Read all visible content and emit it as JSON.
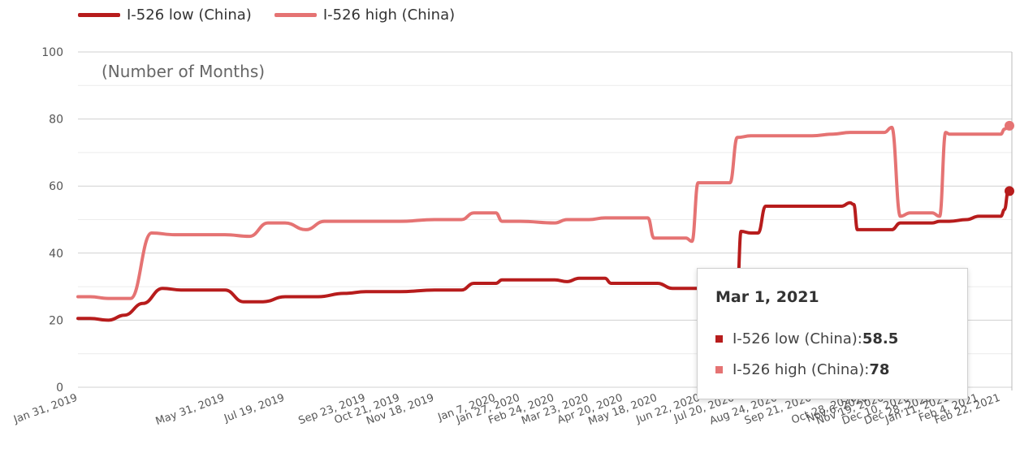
{
  "chart_data": {
    "type": "line",
    "title": "",
    "y_note": "(Number of Months)",
    "xlabel": "",
    "ylabel": "",
    "ylim": [
      0,
      100
    ],
    "y_ticks": [
      0,
      20,
      40,
      60,
      80,
      100
    ],
    "grid": true,
    "legend_position": "top-left",
    "categories": [
      "Jan 31, 2019",
      "May 31, 2019",
      "Jul 19, 2019",
      "Sep 23, 2019",
      "Oct 21, 2019",
      "Nov 18, 2019",
      "Jan 7, 2020",
      "Jan 27, 2020",
      "Feb 24, 2020",
      "Mar 23, 2020",
      "Apr 20, 2020",
      "May 18, 2020",
      "Jun 22, 2020",
      "Jul 20, 2020",
      "Aug 24, 2020",
      "Sep 21, 2020",
      "Oct 28, 2020",
      "Nov 6, 2020",
      "Nov 19, 2020",
      "Dec 10, 2020",
      "Dec 28, 2020",
      "Jan 11, 2021",
      "Feb 4, 2021",
      "Feb 22, 2021"
    ],
    "series": [
      {
        "name": "I-526 low (China)",
        "color": "#b71c1c",
        "points": [
          [
            "Jan 31, 2019",
            20.5
          ],
          [
            "Feb 10, 2019",
            20.5
          ],
          [
            "Feb 25, 2019",
            20
          ],
          [
            "Mar 10, 2019",
            21.5
          ],
          [
            "Mar 25, 2019",
            25
          ],
          [
            "Apr 10, 2019",
            29.5
          ],
          [
            "Apr 25, 2019",
            29
          ],
          [
            "May 20, 2019",
            29
          ],
          [
            "May 31, 2019",
            29
          ],
          [
            "Jun 15, 2019",
            25.5
          ],
          [
            "Jul 1, 2019",
            25.5
          ],
          [
            "Jul 19, 2019",
            27
          ],
          [
            "Aug 15, 2019",
            27
          ],
          [
            "Sep 5, 2019",
            28
          ],
          [
            "Sep 23, 2019",
            28.5
          ],
          [
            "Oct 21, 2019",
            28.5
          ],
          [
            "Nov 18, 2019",
            29
          ],
          [
            "Dec 10, 2019",
            29
          ],
          [
            "Dec 20, 2019",
            31
          ],
          [
            "Jan 7, 2020",
            31
          ],
          [
            "Jan 12, 2020",
            32
          ],
          [
            "Jan 27, 2020",
            32
          ],
          [
            "Feb 24, 2020",
            32
          ],
          [
            "Mar 5, 2020",
            31.5
          ],
          [
            "Mar 15, 2020",
            32.5
          ],
          [
            "Apr 5, 2020",
            32.5
          ],
          [
            "Apr 10, 2020",
            31
          ],
          [
            "Apr 20, 2020",
            31
          ],
          [
            "May 18, 2020",
            31
          ],
          [
            "May 30, 2020",
            29.5
          ],
          [
            "Jun 22, 2020",
            29.5
          ],
          [
            "Jul 10, 2020",
            29.5
          ],
          [
            "Jul 16, 2020",
            29
          ],
          [
            "Jul 22, 2020",
            29
          ],
          [
            "Jul 25, 2020",
            46.5
          ],
          [
            "Aug 2, 2020",
            46
          ],
          [
            "Aug 8, 2020",
            46
          ],
          [
            "Aug 14, 2020",
            54
          ],
          [
            "Aug 24, 2020",
            54
          ],
          [
            "Sep 21, 2020",
            54
          ],
          [
            "Sep 28, 2020",
            54
          ],
          [
            "Oct 15, 2020",
            54
          ],
          [
            "Oct 22, 2020",
            55
          ],
          [
            "Oct 25, 2020",
            54.5
          ],
          [
            "Oct 28, 2020",
            47
          ],
          [
            "Nov 6, 2020",
            47
          ],
          [
            "Nov 19, 2020",
            47
          ],
          [
            "Nov 25, 2020",
            47
          ],
          [
            "Dec 2, 2020",
            49
          ],
          [
            "Dec 10, 2020",
            49
          ],
          [
            "Dec 28, 2020",
            49
          ],
          [
            "Jan 3, 2021",
            49.5
          ],
          [
            "Jan 11, 2021",
            49.5
          ],
          [
            "Jan 25, 2021",
            50
          ],
          [
            "Feb 4, 2021",
            51
          ],
          [
            "Feb 22, 2021",
            51
          ],
          [
            "Feb 25, 2021",
            53
          ],
          [
            "Feb 28, 2021",
            58.5
          ],
          [
            "Mar 1, 2021",
            58.5
          ]
        ]
      },
      {
        "name": "I-526 high (China)",
        "color": "#e57373",
        "points": [
          [
            "Jan 31, 2019",
            27
          ],
          [
            "Feb 10, 2019",
            27
          ],
          [
            "Feb 25, 2019",
            26.5
          ],
          [
            "Mar 15, 2019",
            26.5
          ],
          [
            "Apr 1, 2019",
            46
          ],
          [
            "Apr 20, 2019",
            45.5
          ],
          [
            "May 31, 2019",
            45.5
          ],
          [
            "Jun 20, 2019",
            45
          ],
          [
            "Jul 5, 2019",
            49
          ],
          [
            "Jul 19, 2019",
            49
          ],
          [
            "Aug 5, 2019",
            47
          ],
          [
            "Aug 20, 2019",
            49.5
          ],
          [
            "Sep 23, 2019",
            49.5
          ],
          [
            "Oct 21, 2019",
            49.5
          ],
          [
            "Nov 18, 2019",
            50
          ],
          [
            "Dec 10, 2019",
            50
          ],
          [
            "Dec 20, 2019",
            52
          ],
          [
            "Jan 7, 2020",
            52
          ],
          [
            "Jan 12, 2020",
            49.5
          ],
          [
            "Jan 27, 2020",
            49.5
          ],
          [
            "Feb 24, 2020",
            49
          ],
          [
            "Mar 5, 2020",
            50
          ],
          [
            "Mar 23, 2020",
            50
          ],
          [
            "Apr 5, 2020",
            50.5
          ],
          [
            "Apr 20, 2020",
            50.5
          ],
          [
            "May 10, 2020",
            50.5
          ],
          [
            "May 15, 2020",
            44.5
          ],
          [
            "May 18, 2020",
            44.5
          ],
          [
            "Jun 10, 2020",
            44.5
          ],
          [
            "Jun 15, 2020",
            43.5
          ],
          [
            "Jun 20, 2020",
            61
          ],
          [
            "Jun 22, 2020",
            61
          ],
          [
            "Jul 10, 2020",
            61
          ],
          [
            "Jul 16, 2020",
            61
          ],
          [
            "Jul 22, 2020",
            74.5
          ],
          [
            "Aug 2, 2020",
            75
          ],
          [
            "Aug 8, 2020",
            75
          ],
          [
            "Aug 24, 2020",
            75
          ],
          [
            "Sep 21, 2020",
            75
          ],
          [
            "Oct 8, 2020",
            75.5
          ],
          [
            "Oct 22, 2020",
            76
          ],
          [
            "Oct 28, 2020",
            76
          ],
          [
            "Nov 6, 2020",
            76
          ],
          [
            "Nov 19, 2020",
            76
          ],
          [
            "Nov 25, 2020",
            77.5
          ],
          [
            "Dec 2, 2020",
            51
          ],
          [
            "Dec 10, 2020",
            52
          ],
          [
            "Dec 28, 2020",
            52
          ],
          [
            "Jan 3, 2021",
            51
          ],
          [
            "Jan 8, 2021",
            76
          ],
          [
            "Jan 11, 2021",
            75.5
          ],
          [
            "Jan 25, 2021",
            75.5
          ],
          [
            "Feb 4, 2021",
            75.5
          ],
          [
            "Feb 22, 2021",
            75.5
          ],
          [
            "Feb 25, 2021",
            77
          ],
          [
            "Mar 1, 2021",
            78
          ]
        ]
      }
    ]
  },
  "legend": [
    {
      "label": "I-526 low (China)",
      "color": "#b71c1c"
    },
    {
      "label": "I-526 high (China)",
      "color": "#e57373"
    }
  ],
  "tooltip": {
    "date": "Mar 1, 2021",
    "rows": [
      {
        "label": "I-526 low (China): ",
        "value": "58.5",
        "color": "#b71c1c"
      },
      {
        "label": "I-526 high (China): ",
        "value": "78",
        "color": "#e57373"
      }
    ]
  }
}
